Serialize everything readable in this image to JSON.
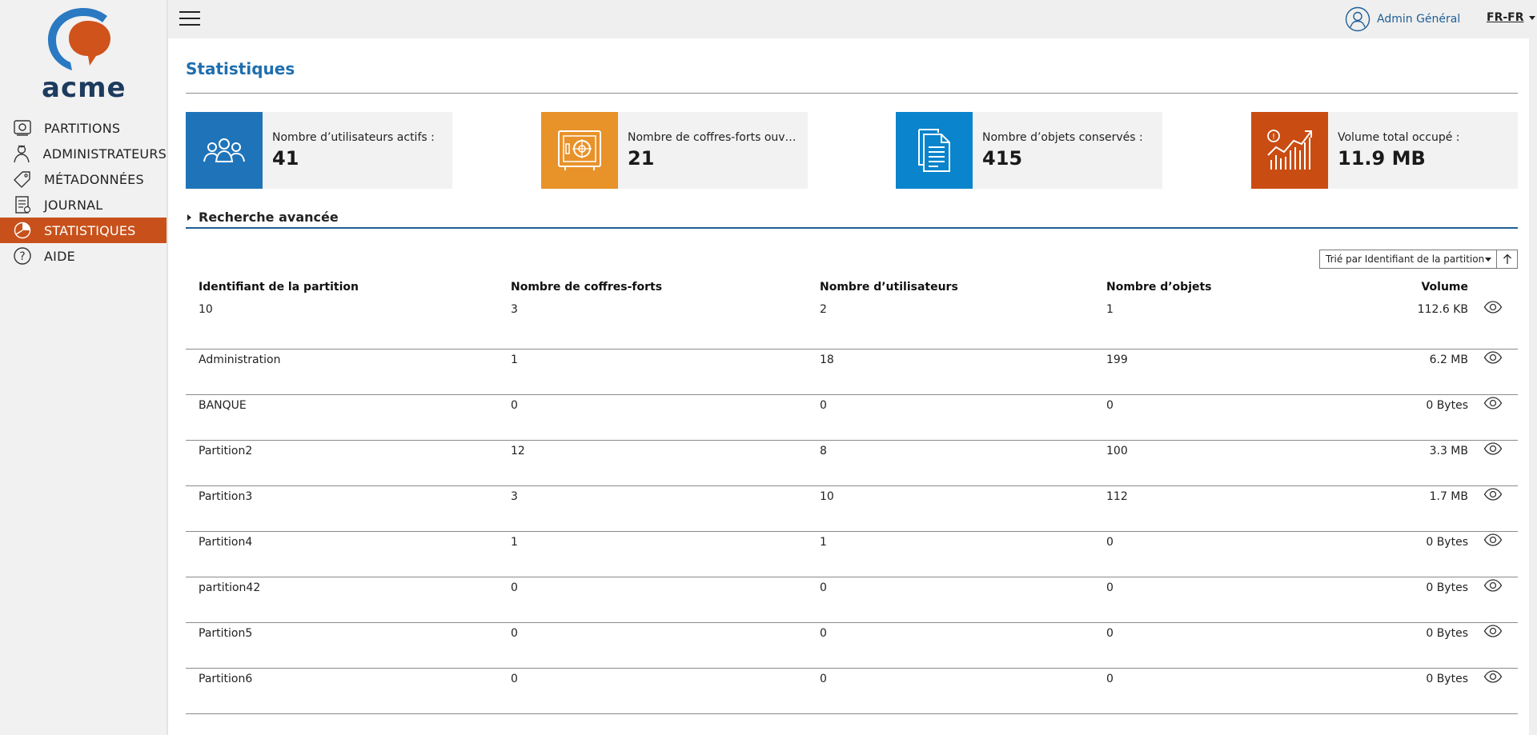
{
  "app": {
    "logo_text": "acme"
  },
  "colors": {
    "accent": "#c8511b",
    "blue": "#1f6fae",
    "card_blue": "#1f74b9",
    "card_yellow": "#e8922a",
    "card_cyan": "#0a84cc",
    "card_red": "#c94c13"
  },
  "sidebar": {
    "items": [
      {
        "label": "PARTITIONS",
        "icon": "partitions-icon",
        "active": false
      },
      {
        "label": "ADMINISTRATEURS",
        "icon": "administrators-icon",
        "active": false
      },
      {
        "label": "MÉTADONNÉES",
        "icon": "tag-icon",
        "active": false
      },
      {
        "label": "JOURNAL",
        "icon": "journal-icon",
        "active": false
      },
      {
        "label": "STATISTIQUES",
        "icon": "pie-chart-icon",
        "active": true
      },
      {
        "label": "AIDE",
        "icon": "help-icon",
        "active": false
      }
    ]
  },
  "topbar": {
    "user": "Admin Général",
    "lang": "FR-FR"
  },
  "page": {
    "title": "Statistiques"
  },
  "cards": [
    {
      "label": "Nombre d’utilisateurs actifs :",
      "value": "41",
      "icon": "users-icon"
    },
    {
      "label": "Nombre de coffres-forts ouverts :",
      "value": "21",
      "icon": "safe-icon"
    },
    {
      "label": "Nombre d’objets conservés :",
      "value": "415",
      "icon": "documents-icon"
    },
    {
      "label": "Volume total occupé :",
      "value": "11.9 MB",
      "icon": "growth-chart-icon"
    }
  ],
  "advanced_search": {
    "label": "Recherche avancée"
  },
  "sort": {
    "label": "Trié par Identifiant de la partition"
  },
  "table": {
    "headers": [
      "Identifiant de la partition",
      "Nombre de coffres-forts",
      "Nombre d’utilisateurs",
      "Nombre d’objets",
      "Volume"
    ],
    "rows": [
      [
        "10",
        "3",
        "2",
        "1",
        "112.6 KB"
      ],
      [
        "Administration",
        "1",
        "18",
        "199",
        "6.2 MB"
      ],
      [
        "BANQUE",
        "0",
        "0",
        "0",
        "0 Bytes"
      ],
      [
        "Partition2",
        "12",
        "8",
        "100",
        "3.3 MB"
      ],
      [
        "Partition3",
        "3",
        "10",
        "112",
        "1.7 MB"
      ],
      [
        "Partition4",
        "1",
        "1",
        "0",
        "0 Bytes"
      ],
      [
        "partition42",
        "0",
        "0",
        "0",
        "0 Bytes"
      ],
      [
        "Partition5",
        "0",
        "0",
        "0",
        "0 Bytes"
      ],
      [
        "Partition6",
        "0",
        "0",
        "0",
        "0 Bytes"
      ]
    ]
  }
}
